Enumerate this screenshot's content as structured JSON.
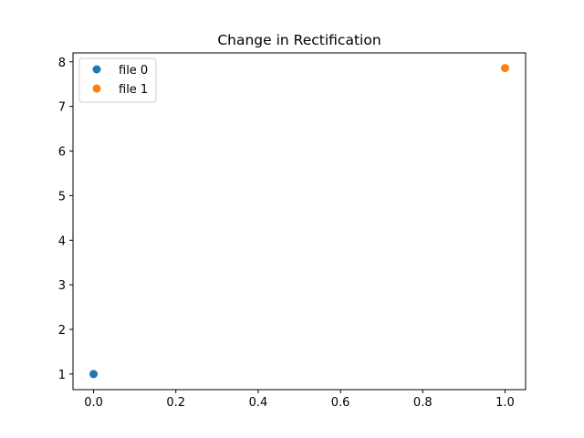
{
  "chart_data": {
    "type": "scatter",
    "title": "Change in Rectification",
    "xlabel": "",
    "ylabel": "",
    "xlim": [
      -0.05,
      1.05
    ],
    "ylim": [
      0.65,
      8.2
    ],
    "xticks": [
      0.0,
      0.2,
      0.4,
      0.6,
      0.8,
      1.0
    ],
    "xtick_labels": [
      "0.0",
      "0.2",
      "0.4",
      "0.6",
      "0.8",
      "1.0"
    ],
    "yticks": [
      1,
      2,
      3,
      4,
      5,
      6,
      7,
      8
    ],
    "ytick_labels": [
      "1",
      "2",
      "3",
      "4",
      "5",
      "6",
      "7",
      "8"
    ],
    "grid": false,
    "legend_position": "upper-left",
    "series": [
      {
        "name": "file 0",
        "color": "#1f77b4",
        "points": [
          {
            "x": 0.0,
            "y": 1.0
          }
        ]
      },
      {
        "name": "file 1",
        "color": "#ff7f0e",
        "points": [
          {
            "x": 1.0,
            "y": 7.86
          }
        ]
      }
    ]
  }
}
